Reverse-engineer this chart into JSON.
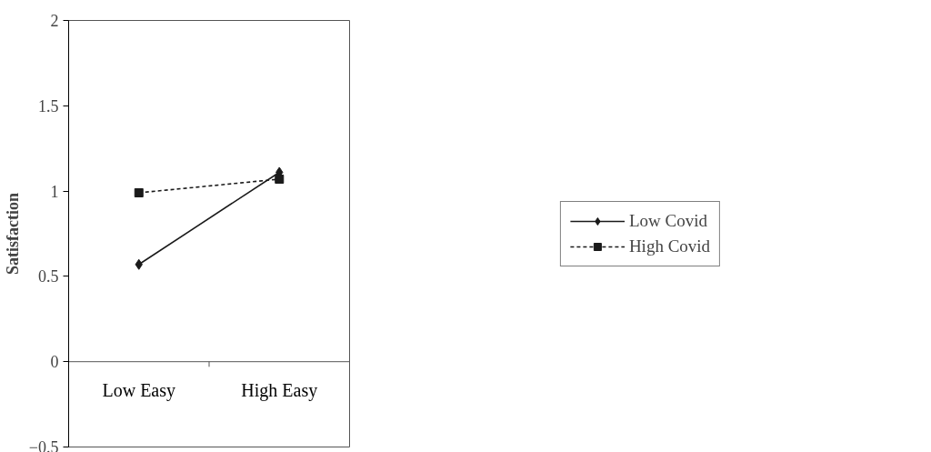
{
  "chart_data": {
    "type": "line",
    "ylabel": "Satisfaction",
    "categories": [
      "Low Easy",
      "High Easy"
    ],
    "series": [
      {
        "name": "Low Covid",
        "color": "#1a1a1a",
        "values": [
          0.57,
          1.11
        ],
        "marker": "diamond",
        "line_style": "solid"
      },
      {
        "name": "High Covid",
        "color": "#1a1a1a",
        "values": [
          0.99,
          1.07
        ],
        "marker": "square",
        "line_style": "dashed"
      }
    ],
    "ylim": [
      -0.5,
      2
    ],
    "yticks": [
      -0.5,
      0,
      0.5,
      1,
      1.5,
      2
    ],
    "grid": false,
    "legend": "right"
  }
}
